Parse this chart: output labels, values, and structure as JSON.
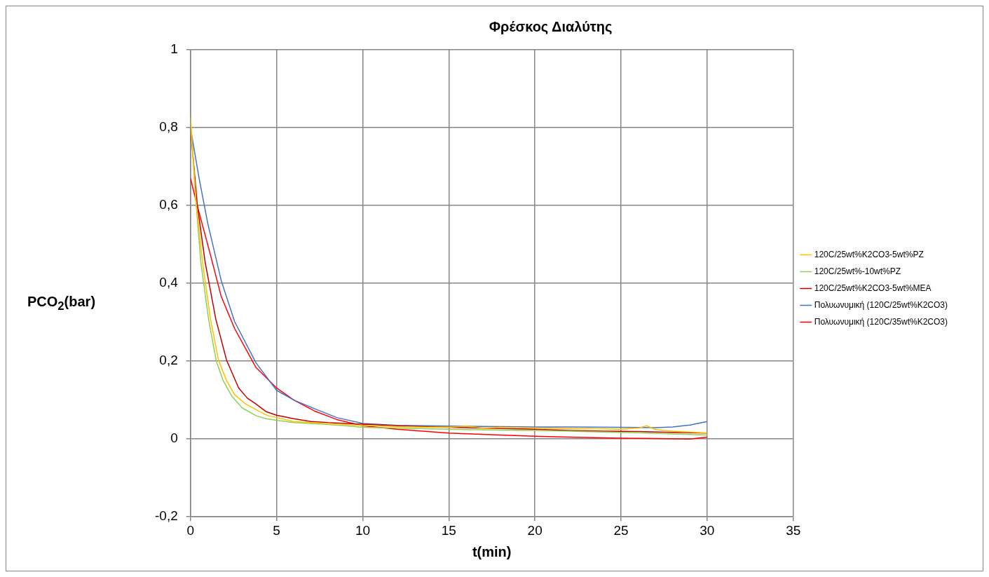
{
  "chart_data": {
    "type": "line",
    "title": "Φρέσκος Διαλύτης",
    "xlabel": "t(min)",
    "ylabel": "PCO$_{2}$(bar)",
    "xlim": [
      0,
      35
    ],
    "xticks": [
      0,
      5,
      10,
      15,
      20,
      25,
      30,
      35
    ],
    "ylim": [
      -0.2,
      1
    ],
    "yticks": [
      {
        "value": -0.2,
        "label": "-0,2"
      },
      0,
      {
        "value": 0.2,
        "label": "0,2"
      },
      {
        "value": 0.4,
        "label": "0,4"
      },
      {
        "value": 0.6,
        "label": "0,6"
      },
      {
        "value": 0.8,
        "label": "0,8"
      },
      1
    ],
    "grid": true,
    "legend": "right",
    "marker": "none",
    "line_style": "solid",
    "series": [
      {
        "name": "120C/25wt%K2CO3-5wt%PZ",
        "color": "#ffc000",
        "x": [
          0,
          0.3,
          0.7,
          1.16,
          1.63,
          2.1,
          2.56,
          3.2,
          3.95,
          4.5,
          5,
          6,
          7,
          8,
          9,
          10,
          12,
          14,
          15,
          16,
          17,
          18,
          20,
          22,
          24,
          25,
          26,
          26.5,
          27,
          28,
          29,
          30
        ],
        "values": [
          0.82,
          0.62,
          0.455,
          0.308,
          0.202,
          0.15,
          0.114,
          0.09,
          0.072,
          0.06,
          0.055,
          0.045,
          0.042,
          0.04,
          0.037,
          0.035,
          0.032,
          0.03,
          0.03,
          0.033,
          0.028,
          0.03,
          0.028,
          0.027,
          0.026,
          0.025,
          0.028,
          0.034,
          0.024,
          0.02,
          0.018,
          0.015
        ]
      },
      {
        "name": "120C/25wt%-10wt%PZ",
        "color": "#92d050",
        "x": [
          0,
          0.3,
          0.6,
          1.05,
          1.5,
          1.9,
          2.4,
          3,
          3.8,
          4.4,
          5,
          6,
          7,
          8,
          9,
          10,
          12,
          14,
          16,
          18,
          20,
          22,
          24,
          26,
          28,
          30
        ],
        "values": [
          0.83,
          0.62,
          0.455,
          0.308,
          0.2,
          0.15,
          0.11,
          0.08,
          0.06,
          0.052,
          0.048,
          0.042,
          0.04,
          0.037,
          0.034,
          0.03,
          0.028,
          0.026,
          0.024,
          0.023,
          0.022,
          0.02,
          0.018,
          0.016,
          0.013,
          0.01
        ]
      },
      {
        "name": "120C/25wt%K2CO3-5wt%MEA",
        "color": "#c00000",
        "x": [
          0,
          0.4,
          0.85,
          1.47,
          2.1,
          2.8,
          3.3,
          3.8,
          4.4,
          5,
          6,
          7,
          8,
          9,
          10,
          12,
          14,
          15,
          16,
          18,
          20,
          22,
          24,
          26,
          28,
          30
        ],
        "values": [
          0.8,
          0.6,
          0.455,
          0.308,
          0.202,
          0.131,
          0.105,
          0.09,
          0.07,
          0.061,
          0.052,
          0.045,
          0.042,
          0.04,
          0.038,
          0.034,
          0.031,
          0.03,
          0.029,
          0.027,
          0.025,
          0.022,
          0.02,
          0.019,
          0.017,
          0.015
        ]
      },
      {
        "name": "Πολυωνυμική (120C/25wt%K2CO3)",
        "color": "#4472c4",
        "x": [
          0,
          0.5,
          1,
          1.78,
          2.56,
          3.8,
          5,
          6,
          7.2,
          8.5,
          10,
          12,
          15,
          18,
          20,
          22,
          25,
          27,
          28,
          29,
          30
        ],
        "values": [
          0.8,
          0.67,
          0.555,
          0.408,
          0.302,
          0.196,
          0.125,
          0.1,
          0.078,
          0.055,
          0.04,
          0.035,
          0.033,
          0.032,
          0.031,
          0.031,
          0.03,
          0.029,
          0.031,
          0.036,
          0.045
        ]
      },
      {
        "name": "Πολυωνυμική (120C/35wt%K2CO3)",
        "color": "#ff0000",
        "x": [
          0,
          0.39,
          1,
          1.78,
          2.56,
          3.8,
          5,
          6,
          7.2,
          8.5,
          10,
          12,
          15,
          18,
          20,
          22,
          25,
          27,
          29,
          30
        ],
        "values": [
          0.67,
          0.6,
          0.5,
          0.367,
          0.284,
          0.184,
          0.131,
          0.1,
          0.072,
          0.05,
          0.034,
          0.025,
          0.015,
          0.01,
          0.007,
          0.005,
          0.002,
          0.001,
          0,
          0.005
        ]
      }
    ]
  }
}
